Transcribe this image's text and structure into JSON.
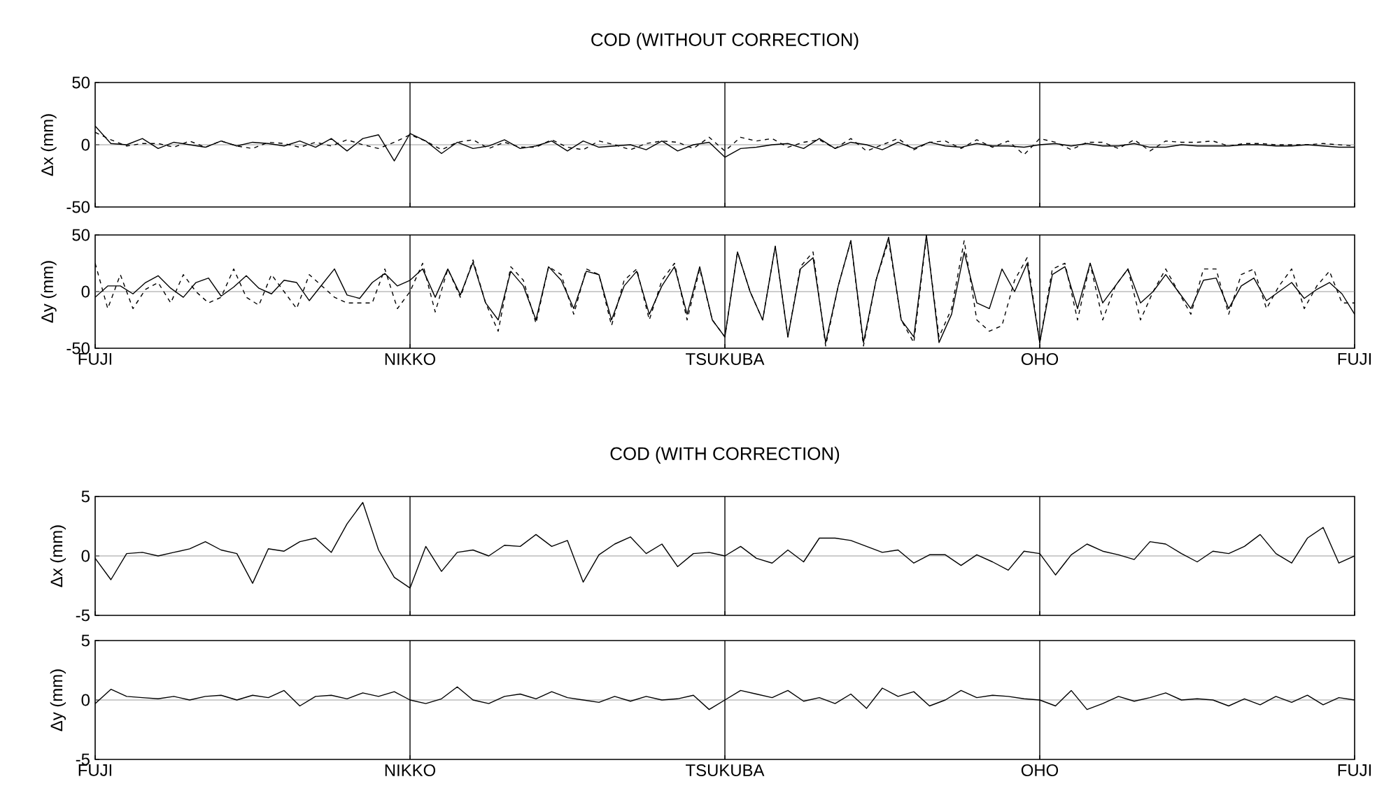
{
  "chart_data": [
    {
      "type": "line",
      "title": "COD (WITHOUT CORRECTION)",
      "ylabel": "Δx (mm)",
      "ylim": [
        -50,
        50
      ],
      "tick_labels": "y",
      "yticks": [
        -50,
        0,
        50
      ],
      "categories": [
        "FUJI",
        null,
        null,
        null,
        null,
        null,
        null,
        null,
        null,
        null,
        null,
        null,
        null,
        null,
        null,
        null,
        null,
        null,
        null,
        null,
        "NIKKO",
        null,
        null,
        null,
        null,
        null,
        null,
        null,
        null,
        null,
        null,
        null,
        null,
        null,
        null,
        null,
        null,
        null,
        null,
        null,
        "TSUKUBA",
        null,
        null,
        null,
        null,
        null,
        null,
        null,
        null,
        null,
        null,
        null,
        null,
        null,
        null,
        null,
        null,
        null,
        null,
        null,
        "OHO",
        null,
        null,
        null,
        null,
        null,
        null,
        null,
        null,
        null,
        null,
        null,
        null,
        null,
        null,
        null,
        null,
        null,
        null,
        null,
        "FUJI"
      ],
      "ref_lines": [
        {
          "axis": "y",
          "value": 0,
          "color": "#808080"
        },
        {
          "axis": "x",
          "value": "NIKKO",
          "color": "#000000"
        },
        {
          "axis": "x",
          "value": "TSUKUBA",
          "color": "#000000"
        },
        {
          "axis": "x",
          "value": "OHO",
          "color": "#000000"
        }
      ],
      "series": [
        {
          "color": "#000000",
          "line_style": "solid",
          "values": [
            15,
            1,
            0,
            5,
            -3,
            2,
            0,
            -2,
            3,
            -1,
            2,
            1,
            -1,
            3,
            -2,
            5,
            -5,
            5,
            8,
            -13,
            9,
            3,
            -7,
            2,
            -3,
            -1,
            4,
            -3,
            -1,
            3,
            -5,
            3,
            -2,
            -1,
            0,
            -4,
            3,
            -5,
            0,
            2,
            -10,
            -3,
            -2,
            0,
            1,
            -3,
            5,
            -3,
            2,
            0,
            -4,
            2,
            -3,
            2,
            -1,
            -2,
            1,
            -1,
            -1,
            -2,
            0,
            1,
            -1,
            1,
            -1,
            -1,
            1,
            -2,
            -2,
            0,
            -1,
            -1,
            -1,
            0,
            0,
            -1,
            -1,
            0,
            -1,
            -2,
            -2
          ]
        },
        {
          "color": "#000000",
          "line_style": "dashed",
          "values": [
            10,
            4,
            -1,
            1,
            1,
            -2,
            3,
            -2,
            3,
            -1,
            -3,
            2,
            1,
            -2,
            2,
            -1,
            4,
            0,
            -3,
            2,
            8,
            3,
            -4,
            2,
            4,
            -3,
            2,
            -2,
            -2,
            4,
            -2,
            -4,
            3,
            0,
            -4,
            1,
            3,
            2,
            -3,
            6,
            -5,
            6,
            3,
            5,
            -2,
            2,
            4,
            -3,
            5,
            -5,
            0,
            5,
            -4,
            2,
            3,
            -3,
            4,
            -2,
            3,
            -8,
            5,
            2,
            -4,
            2,
            2,
            -3,
            4,
            -5,
            3,
            2,
            2,
            3,
            -1,
            1,
            1,
            0,
            0,
            0,
            1,
            0,
            -1
          ]
        }
      ]
    },
    {
      "type": "line",
      "ylabel": "Δy (mm)",
      "ylim": [
        -50,
        50
      ],
      "yticks": [
        -50,
        0,
        50
      ],
      "categories": [
        "FUJI",
        null,
        null,
        null,
        null,
        null,
        null,
        null,
        null,
        null,
        null,
        null,
        null,
        null,
        null,
        null,
        null,
        null,
        null,
        null,
        null,
        null,
        null,
        null,
        null,
        "NIKKO",
        null,
        null,
        null,
        null,
        null,
        null,
        null,
        null,
        null,
        null,
        null,
        null,
        null,
        null,
        null,
        null,
        null,
        null,
        null,
        null,
        null,
        null,
        null,
        null,
        "TSUKUBA",
        null,
        null,
        null,
        null,
        null,
        null,
        null,
        null,
        null,
        null,
        null,
        null,
        null,
        null,
        null,
        null,
        null,
        null,
        null,
        null,
        null,
        null,
        null,
        null,
        "OHO",
        null,
        null,
        null,
        null,
        null,
        null,
        null,
        null,
        null,
        null,
        null,
        null,
        null,
        null,
        null,
        null,
        null,
        null,
        null,
        null,
        null,
        null,
        null,
        null,
        "FUJI"
      ],
      "ref_lines": [
        {
          "axis": "y",
          "value": 0,
          "color": "#808080"
        },
        {
          "axis": "x",
          "value": "NIKKO",
          "color": "#000000"
        },
        {
          "axis": "x",
          "value": "TSUKUBA",
          "color": "#000000"
        },
        {
          "axis": "x",
          "value": "OHO",
          "color": "#000000"
        }
      ],
      "series": [
        {
          "color": "#000000",
          "line_style": "solid",
          "values": [
            -5,
            5,
            5,
            -2,
            8,
            14,
            3,
            -5,
            8,
            12,
            -4,
            4,
            14,
            3,
            -2,
            10,
            8,
            -8,
            6,
            20,
            -3,
            -6,
            8,
            16,
            5,
            10,
            20,
            -5,
            20,
            -3,
            26,
            -10,
            -25,
            18,
            5,
            -25,
            22,
            10,
            -15,
            18,
            15,
            -25,
            5,
            18,
            -20,
            5,
            22,
            -20,
            22,
            -25,
            -40,
            35,
            0,
            -25,
            40,
            -40,
            20,
            30,
            -45,
            5,
            45,
            -45,
            10,
            48,
            -25,
            -40,
            50,
            -45,
            -20,
            35,
            -10,
            -15,
            20,
            0,
            25,
            -45,
            15,
            22,
            -15,
            25,
            -10,
            5,
            20,
            -10,
            0,
            15,
            0,
            -15,
            10,
            12,
            -15,
            5,
            12,
            -8,
            0,
            8,
            -6,
            2,
            8,
            -2,
            -20
          ]
        },
        {
          "color": "#000000",
          "line_style": "dashed",
          "values": [
            25,
            -15,
            15,
            -15,
            2,
            8,
            -10,
            15,
            0,
            -10,
            -5,
            20,
            -5,
            -12,
            15,
            0,
            -15,
            15,
            5,
            -5,
            -10,
            -10,
            -10,
            20,
            -15,
            0,
            25,
            -18,
            20,
            -5,
            28,
            -10,
            -35,
            22,
            10,
            -28,
            22,
            15,
            -20,
            20,
            15,
            -30,
            10,
            20,
            -25,
            10,
            25,
            -25,
            20,
            -25,
            -40,
            35,
            0,
            -25,
            40,
            -40,
            22,
            35,
            -48,
            5,
            45,
            -48,
            10,
            45,
            -25,
            -45,
            48,
            -40,
            -15,
            45,
            -25,
            -35,
            -30,
            10,
            30,
            -45,
            20,
            25,
            -25,
            25,
            -25,
            5,
            20,
            -25,
            0,
            20,
            0,
            -20,
            20,
            20,
            -20,
            15,
            20,
            -15,
            5,
            20,
            -15,
            5,
            18,
            -10,
            -10
          ]
        }
      ]
    },
    {
      "type": "line",
      "title": "COD (WITH CORRECTION)",
      "ylabel": "Δx (mm)",
      "ylim": [
        -5,
        5
      ],
      "tick_labels": "y",
      "yticks": [
        -5,
        0,
        5
      ],
      "categories": [
        "FUJI",
        null,
        null,
        null,
        null,
        null,
        null,
        null,
        null,
        null,
        null,
        null,
        null,
        null,
        null,
        null,
        null,
        null,
        null,
        null,
        "NIKKO",
        null,
        null,
        null,
        null,
        null,
        null,
        null,
        null,
        null,
        null,
        null,
        null,
        null,
        null,
        null,
        null,
        null,
        null,
        null,
        "TSUKUBA",
        null,
        null,
        null,
        null,
        null,
        null,
        null,
        null,
        null,
        null,
        null,
        null,
        null,
        null,
        null,
        null,
        null,
        null,
        null,
        "OHO",
        null,
        null,
        null,
        null,
        null,
        null,
        null,
        null,
        null,
        null,
        null,
        null,
        null,
        null,
        null,
        null,
        null,
        null,
        null,
        "FUJI"
      ],
      "ref_lines": [
        {
          "axis": "y",
          "value": 0,
          "color": "#808080"
        },
        {
          "axis": "x",
          "value": "NIKKO",
          "color": "#000000"
        },
        {
          "axis": "x",
          "value": "TSUKUBA",
          "color": "#000000"
        },
        {
          "axis": "x",
          "value": "OHO",
          "color": "#000000"
        }
      ],
      "series": [
        {
          "color": "#000000",
          "line_style": "solid",
          "values": [
            -0.2,
            -2,
            0.2,
            0.3,
            0,
            0.3,
            0.6,
            1.2,
            0.5,
            0.2,
            -2.3,
            0.6,
            0.4,
            1.2,
            1.5,
            0.3,
            2.7,
            4.5,
            0.5,
            -1.8,
            -2.7,
            0.8,
            -1.3,
            0.3,
            0.5,
            0,
            0.9,
            0.8,
            1.8,
            0.8,
            1.3,
            -2.2,
            0.1,
            1,
            1.6,
            0.2,
            1,
            -0.9,
            0.2,
            0.3,
            0,
            0.8,
            -0.2,
            -0.6,
            0.5,
            -0.5,
            1.5,
            1.5,
            1.3,
            0.8,
            0.3,
            0.5,
            -0.6,
            0.1,
            0.1,
            -0.8,
            0.1,
            -0.5,
            -1.2,
            0.4,
            0.2,
            -1.6,
            0.1,
            1,
            0.4,
            0.1,
            -0.3,
            1.2,
            1,
            0.2,
            -0.5,
            0.4,
            0.2,
            0.8,
            1.8,
            0.2,
            -0.6,
            1.5,
            2.4,
            -0.6,
            0
          ]
        }
      ]
    },
    {
      "type": "line",
      "ylabel": "Δy (mm)",
      "ylim": [
        -5,
        5
      ],
      "yticks": [
        -5,
        0,
        5
      ],
      "categories": [
        "FUJI",
        null,
        null,
        null,
        null,
        null,
        null,
        null,
        null,
        null,
        null,
        null,
        null,
        null,
        null,
        null,
        null,
        null,
        null,
        null,
        "NIKKO",
        null,
        null,
        null,
        null,
        null,
        null,
        null,
        null,
        null,
        null,
        null,
        null,
        null,
        null,
        null,
        null,
        null,
        null,
        null,
        "TSUKUBA",
        null,
        null,
        null,
        null,
        null,
        null,
        null,
        null,
        null,
        null,
        null,
        null,
        null,
        null,
        null,
        null,
        null,
        null,
        null,
        "OHO",
        null,
        null,
        null,
        null,
        null,
        null,
        null,
        null,
        null,
        null,
        null,
        null,
        null,
        null,
        null,
        null,
        null,
        null,
        null,
        "FUJI"
      ],
      "ref_lines": [
        {
          "axis": "y",
          "value": 0,
          "color": "#808080"
        },
        {
          "axis": "x",
          "value": "NIKKO",
          "color": "#000000"
        },
        {
          "axis": "x",
          "value": "TSUKUBA",
          "color": "#000000"
        },
        {
          "axis": "x",
          "value": "OHO",
          "color": "#000000"
        }
      ],
      "series": [
        {
          "color": "#000000",
          "line_style": "solid",
          "values": [
            -0.3,
            0.9,
            0.3,
            0.2,
            0.1,
            0.3,
            0,
            0.3,
            0.4,
            0,
            0.4,
            0.2,
            0.8,
            -0.5,
            0.3,
            0.4,
            0.1,
            0.6,
            0.3,
            0.7,
            0,
            -0.3,
            0.1,
            1.1,
            0,
            -0.3,
            0.3,
            0.5,
            0.1,
            0.7,
            0.2,
            0,
            -0.2,
            0.3,
            -0.1,
            0.3,
            0,
            0.1,
            0.4,
            -0.8,
            0,
            0.8,
            0.5,
            0.2,
            0.8,
            -0.1,
            0.2,
            -0.3,
            0.5,
            -0.7,
            1,
            0.3,
            0.7,
            -0.5,
            0,
            0.8,
            0.2,
            0.4,
            0.3,
            0.1,
            0,
            -0.5,
            0.8,
            -0.8,
            -0.3,
            0.3,
            -0.1,
            0.2,
            0.6,
            0,
            0.1,
            0,
            -0.5,
            0.1,
            -0.4,
            0.3,
            -0.2,
            0.4,
            -0.4,
            0.2,
            0
          ]
        }
      ]
    }
  ]
}
